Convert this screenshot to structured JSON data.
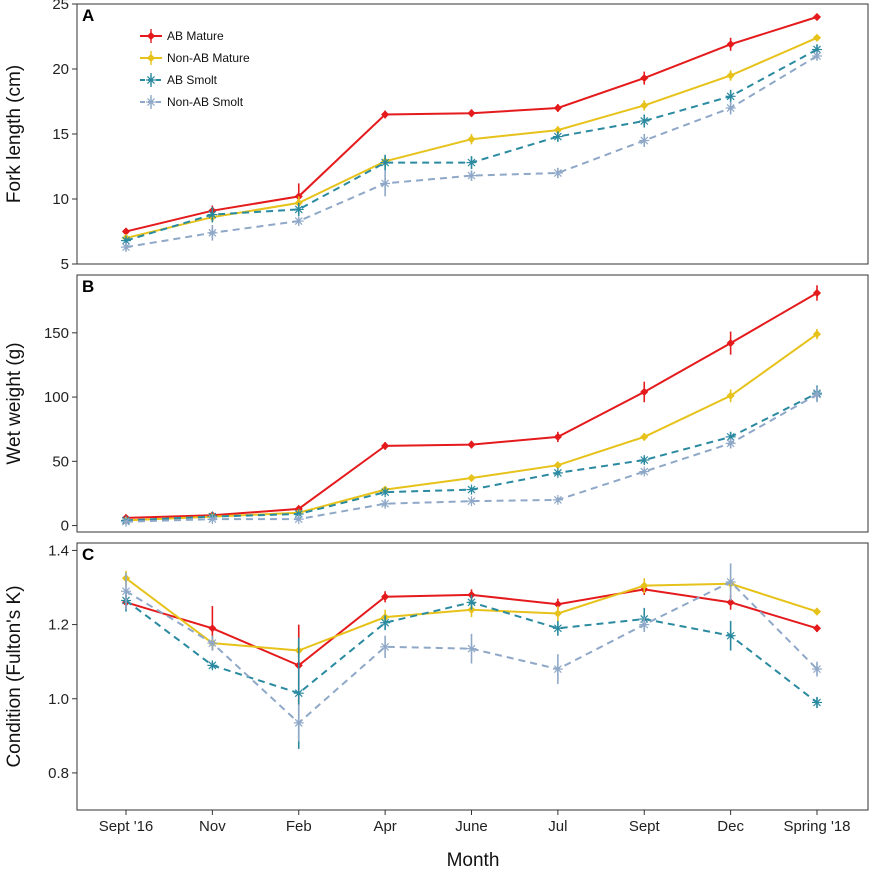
{
  "xlabel": "Month",
  "categories": [
    "Sept '16",
    "Nov",
    "Feb",
    "Apr",
    "June",
    "Jul",
    "Sept",
    "Dec",
    "Spring '18"
  ],
  "legend": {
    "placement": "top-left of panel A",
    "entries": [
      {
        "name": "AB Mature",
        "color": "#e41a1c",
        "dashed": false,
        "marker": "diamond"
      },
      {
        "name": "Non-AB Mature",
        "color": "#e6c21a",
        "dashed": false,
        "marker": "diamond"
      },
      {
        "name": "AB Smolt",
        "color": "#2a8aa0",
        "dashed": true,
        "marker": "star"
      },
      {
        "name": "Non-AB Smolt",
        "color": "#8fa8c8",
        "dashed": true,
        "marker": "star"
      }
    ]
  },
  "chart_data": [
    {
      "type": "line",
      "panel": "A",
      "ylabel": "Fork length (cm)",
      "ylim": [
        5,
        25
      ],
      "yticks": [
        5,
        10,
        15,
        20,
        25
      ],
      "series": [
        {
          "name": "AB Mature",
          "values": [
            7.5,
            9.1,
            10.2,
            16.5,
            16.6,
            17.0,
            19.3,
            21.9,
            24.0
          ],
          "errors": [
            0.2,
            0.4,
            1.0,
            0.3,
            0.3,
            0.3,
            0.5,
            0.5,
            0.2
          ]
        },
        {
          "name": "Non-AB Mature",
          "values": [
            7.0,
            8.6,
            9.7,
            12.9,
            14.6,
            15.3,
            17.2,
            19.5,
            22.4
          ],
          "errors": [
            0.3,
            0.4,
            0.5,
            0.4,
            0.4,
            0.3,
            0.4,
            0.4,
            0.2
          ]
        },
        {
          "name": "AB Smolt",
          "values": [
            6.8,
            8.8,
            9.2,
            12.8,
            12.8,
            14.8,
            16.0,
            17.9,
            21.5
          ],
          "errors": [
            0.3,
            0.6,
            0.5,
            0.6,
            0.5,
            0.4,
            0.5,
            0.5,
            0.4
          ]
        },
        {
          "name": "Non-AB Smolt",
          "values": [
            6.3,
            7.4,
            8.3,
            11.2,
            11.8,
            12.0,
            14.5,
            17.0,
            21.0
          ],
          "errors": [
            0.3,
            0.6,
            0.3,
            1.0,
            0.4,
            0.4,
            0.5,
            0.5,
            0.3
          ]
        }
      ]
    },
    {
      "type": "line",
      "panel": "B",
      "ylabel": "Wet weight (g)",
      "ylim": [
        -5,
        195
      ],
      "yticks": [
        0,
        50,
        100,
        150
      ],
      "series": [
        {
          "name": "AB Mature",
          "values": [
            6,
            8,
            13,
            62,
            63,
            69,
            104,
            142,
            181
          ],
          "errors": [
            1,
            1,
            2,
            3,
            3,
            4,
            8,
            9,
            6
          ]
        },
        {
          "name": "Non-AB Mature",
          "values": [
            4,
            7,
            10,
            28,
            37,
            47,
            69,
            101,
            149
          ],
          "errors": [
            1,
            1,
            1,
            2,
            2,
            2,
            3,
            5,
            4
          ]
        },
        {
          "name": "AB Smolt",
          "values": [
            4,
            7,
            9,
            26,
            28,
            41,
            51,
            69,
            103
          ],
          "errors": [
            1,
            1,
            1,
            2,
            2,
            2,
            3,
            4,
            6
          ]
        },
        {
          "name": "Non-AB Smolt",
          "values": [
            3,
            5,
            5,
            17,
            19,
            20,
            42,
            64,
            102
          ],
          "errors": [
            1,
            1,
            1,
            3,
            1,
            2,
            2,
            4,
            6
          ]
        }
      ]
    },
    {
      "type": "line",
      "panel": "C",
      "ylabel": "Condition (Fulton's K)",
      "ylim": [
        0.7,
        1.42
      ],
      "yticks": [
        0.8,
        1.0,
        1.2,
        1.4
      ],
      "series": [
        {
          "name": "AB Mature",
          "values": [
            1.26,
            1.19,
            1.09,
            1.275,
            1.28,
            1.255,
            1.295,
            1.26,
            1.19
          ],
          "errors": [
            0.02,
            0.06,
            0.11,
            0.015,
            0.015,
            0.015,
            0.015,
            0.02,
            0.01
          ]
        },
        {
          "name": "Non-AB Mature",
          "values": [
            1.325,
            1.15,
            1.13,
            1.22,
            1.24,
            1.23,
            1.305,
            1.31,
            1.235
          ],
          "errors": [
            0.02,
            0.02,
            0.02,
            0.02,
            0.02,
            0.02,
            0.02,
            0.02,
            0.01
          ]
        },
        {
          "name": "AB Smolt",
          "values": [
            1.265,
            1.09,
            1.015,
            1.205,
            1.26,
            1.19,
            1.215,
            1.17,
            0.99
          ],
          "errors": [
            0.03,
            0.01,
            0.15,
            0.02,
            0.02,
            0.02,
            0.03,
            0.04,
            0.015
          ]
        },
        {
          "name": "Non-AB Smolt",
          "values": [
            1.29,
            1.15,
            0.935,
            1.14,
            1.135,
            1.08,
            1.2,
            1.315,
            1.08
          ],
          "errors": [
            0.05,
            0.02,
            0.05,
            0.03,
            0.04,
            0.04,
            0.02,
            0.05,
            0.02
          ]
        }
      ]
    }
  ]
}
